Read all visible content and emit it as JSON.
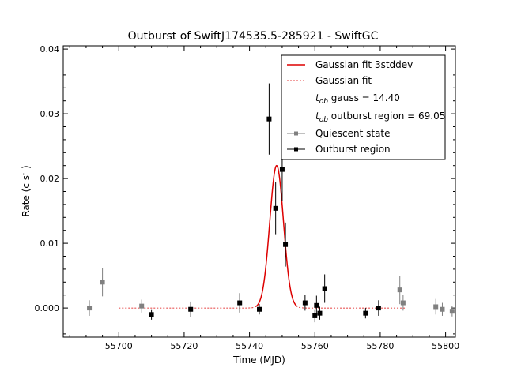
{
  "chart_data": {
    "type": "scatter",
    "title": "Outburst of SwiftJ174535.5-285921 - SwiftGC",
    "xlabel": "Time (MJD)",
    "ylabel_main": "Rate (c s",
    "ylabel_sup": "-1",
    "ylabel_close": ")",
    "xlim": [
      55683,
      55803
    ],
    "ylim": [
      -0.0045,
      0.0405
    ],
    "xticks": [
      55700,
      55720,
      55740,
      55760,
      55780,
      55800
    ],
    "yticks": [
      0.0,
      0.01,
      0.02,
      0.03,
      0.04
    ],
    "ytick_labels": [
      "0.000",
      "0.01",
      "0.02",
      "0.03",
      "0.04"
    ],
    "grid": false,
    "legend_position": "top-right",
    "legend": {
      "fit3sd": "Gaussian fit 3stddev",
      "fit": "Gaussian fit",
      "tob_gauss_sub": "ob",
      "tob_gauss_text": " gauss = 14.40",
      "tob_region_sub": "ob",
      "tob_region_text": " outburst region = 69.05",
      "quiescent": "Quiescent state",
      "outburst": "Outburst region"
    },
    "gaussian": {
      "amplitude": 0.022,
      "center": 55748.3,
      "sigma": 2.1,
      "x_range": [
        55700,
        55788
      ],
      "color": "#dd0000"
    },
    "series": [
      {
        "name": "Quiescent state",
        "color": "#808080",
        "points": [
          {
            "x": 55691,
            "y": 0.0,
            "err": 0.0012
          },
          {
            "x": 55695,
            "y": 0.004,
            "err": 0.0022
          },
          {
            "x": 55707,
            "y": 0.0003,
            "err": 0.001
          },
          {
            "x": 55786,
            "y": 0.0028,
            "err": 0.0022
          },
          {
            "x": 55787,
            "y": 0.0008,
            "err": 0.0012
          },
          {
            "x": 55797,
            "y": 0.0002,
            "err": 0.0012
          },
          {
            "x": 55799,
            "y": -0.0002,
            "err": 0.001
          },
          {
            "x": 55802,
            "y": -0.0005,
            "err": 0.0008
          }
        ]
      },
      {
        "name": "Outburst region",
        "color": "#000000",
        "points": [
          {
            "x": 55710,
            "y": -0.001,
            "err": 0.0008
          },
          {
            "x": 55722,
            "y": -0.0002,
            "err": 0.0012
          },
          {
            "x": 55737,
            "y": 0.0008,
            "err": 0.0015
          },
          {
            "x": 55743,
            "y": -0.0002,
            "err": 0.0008
          },
          {
            "x": 55746,
            "y": 0.0292,
            "err": 0.0055
          },
          {
            "x": 55748,
            "y": 0.0154,
            "err": 0.004
          },
          {
            "x": 55750,
            "y": 0.0214,
            "err": 0.0048
          },
          {
            "x": 55751,
            "y": 0.0098,
            "err": 0.0034
          },
          {
            "x": 55757,
            "y": 0.0008,
            "err": 0.0012
          },
          {
            "x": 55760,
            "y": -0.0012,
            "err": 0.001
          },
          {
            "x": 55760.5,
            "y": 0.0004,
            "err": 0.0015
          },
          {
            "x": 55761.5,
            "y": -0.0008,
            "err": 0.001
          },
          {
            "x": 55763,
            "y": 0.003,
            "err": 0.0022
          },
          {
            "x": 55775.5,
            "y": -0.0008,
            "err": 0.0008
          },
          {
            "x": 55779.5,
            "y": 0.0,
            "err": 0.0012
          }
        ]
      }
    ]
  }
}
